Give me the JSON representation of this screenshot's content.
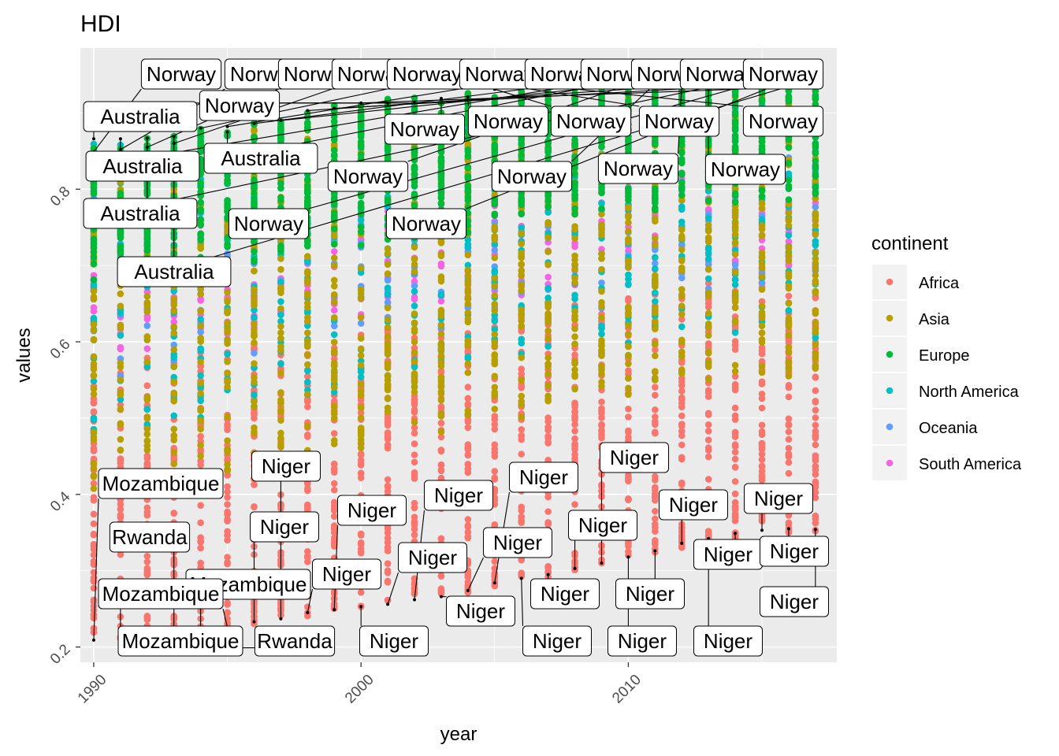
{
  "chart_data": {
    "type": "scatter",
    "title": "HDI",
    "xlabel": "year",
    "ylabel": "values",
    "xlim": [
      1989.5,
      2017.8
    ],
    "ylim": [
      0.18,
      0.985
    ],
    "x_ticks": [
      1990,
      2000,
      2010
    ],
    "x_tick_labels": [
      "1990",
      "2000",
      "2010"
    ],
    "y_ticks": [
      0.2,
      0.4,
      0.6,
      0.8
    ],
    "y_tick_labels": [
      "0.2",
      "0.4",
      "0.6",
      "0.8"
    ],
    "grid": true,
    "legend": {
      "title": "continent",
      "placement": "right",
      "entries": [
        {
          "name": "Africa",
          "color": "#F8766D"
        },
        {
          "name": "Asia",
          "color": "#B79F00"
        },
        {
          "name": "Europe",
          "color": "#00BA38"
        },
        {
          "name": "North America",
          "color": "#00BFC4"
        },
        {
          "name": "Oceania",
          "color": "#619CFF"
        },
        {
          "name": "South America",
          "color": "#F564E3"
        }
      ]
    },
    "years": [
      1990,
      1991,
      1992,
      1993,
      1994,
      1995,
      1996,
      1997,
      1998,
      1999,
      2000,
      2001,
      2002,
      2003,
      2004,
      2005,
      2006,
      2007,
      2008,
      2009,
      2010,
      2011,
      2012,
      2013,
      2014,
      2015,
      2016,
      2017
    ],
    "series": [
      {
        "name": "Africa",
        "range_by_year": [
          [
            0.2,
            0.58
          ],
          [
            0.21,
            0.58
          ],
          [
            0.21,
            0.58
          ],
          [
            0.21,
            0.58
          ],
          [
            0.22,
            0.59
          ],
          [
            0.22,
            0.59
          ],
          [
            0.23,
            0.6
          ],
          [
            0.24,
            0.6
          ],
          [
            0.24,
            0.6
          ],
          [
            0.25,
            0.61
          ],
          [
            0.25,
            0.61
          ],
          [
            0.26,
            0.62
          ],
          [
            0.26,
            0.62
          ],
          [
            0.27,
            0.63
          ],
          [
            0.27,
            0.64
          ],
          [
            0.28,
            0.64
          ],
          [
            0.29,
            0.65
          ],
          [
            0.29,
            0.65
          ],
          [
            0.3,
            0.66
          ],
          [
            0.31,
            0.66
          ],
          [
            0.32,
            0.67
          ],
          [
            0.32,
            0.68
          ],
          [
            0.33,
            0.68
          ],
          [
            0.34,
            0.69
          ],
          [
            0.34,
            0.69
          ],
          [
            0.35,
            0.7
          ],
          [
            0.35,
            0.7
          ],
          [
            0.35,
            0.7
          ]
        ]
      },
      {
        "name": "Asia",
        "range_by_year": [
          [
            0.4,
            0.85
          ],
          [
            0.41,
            0.85
          ],
          [
            0.41,
            0.86
          ],
          [
            0.42,
            0.86
          ],
          [
            0.42,
            0.87
          ],
          [
            0.43,
            0.87
          ],
          [
            0.44,
            0.88
          ],
          [
            0.44,
            0.88
          ],
          [
            0.45,
            0.89
          ],
          [
            0.46,
            0.89
          ],
          [
            0.46,
            0.9
          ],
          [
            0.47,
            0.9
          ],
          [
            0.48,
            0.9
          ],
          [
            0.48,
            0.9
          ],
          [
            0.49,
            0.91
          ],
          [
            0.5,
            0.91
          ],
          [
            0.5,
            0.91
          ],
          [
            0.51,
            0.91
          ],
          [
            0.52,
            0.92
          ],
          [
            0.52,
            0.92
          ],
          [
            0.53,
            0.92
          ],
          [
            0.53,
            0.92
          ],
          [
            0.54,
            0.92
          ],
          [
            0.54,
            0.93
          ],
          [
            0.55,
            0.93
          ],
          [
            0.55,
            0.93
          ],
          [
            0.55,
            0.93
          ],
          [
            0.55,
            0.93
          ]
        ]
      },
      {
        "name": "Europe",
        "range_by_year": [
          [
            0.68,
            0.86
          ],
          [
            0.68,
            0.86
          ],
          [
            0.68,
            0.87
          ],
          [
            0.69,
            0.87
          ],
          [
            0.69,
            0.88
          ],
          [
            0.7,
            0.88
          ],
          [
            0.7,
            0.89
          ],
          [
            0.71,
            0.89
          ],
          [
            0.71,
            0.9
          ],
          [
            0.72,
            0.91
          ],
          [
            0.72,
            0.91
          ],
          [
            0.73,
            0.92
          ],
          [
            0.73,
            0.92
          ],
          [
            0.74,
            0.92
          ],
          [
            0.74,
            0.93
          ],
          [
            0.75,
            0.93
          ],
          [
            0.75,
            0.93
          ],
          [
            0.76,
            0.94
          ],
          [
            0.76,
            0.94
          ],
          [
            0.77,
            0.94
          ],
          [
            0.77,
            0.94
          ],
          [
            0.77,
            0.94
          ],
          [
            0.78,
            0.94
          ],
          [
            0.78,
            0.95
          ],
          [
            0.78,
            0.95
          ],
          [
            0.78,
            0.95
          ],
          [
            0.78,
            0.95
          ],
          [
            0.78,
            0.95
          ]
        ]
      },
      {
        "name": "North America",
        "range_by_year": [
          [
            0.48,
            0.86
          ],
          [
            0.49,
            0.86
          ],
          [
            0.49,
            0.86
          ],
          [
            0.5,
            0.87
          ],
          [
            0.5,
            0.87
          ],
          [
            0.51,
            0.87
          ],
          [
            0.51,
            0.88
          ],
          [
            0.52,
            0.88
          ],
          [
            0.52,
            0.88
          ],
          [
            0.53,
            0.88
          ],
          [
            0.53,
            0.89
          ],
          [
            0.54,
            0.89
          ],
          [
            0.54,
            0.89
          ],
          [
            0.55,
            0.89
          ],
          [
            0.55,
            0.9
          ],
          [
            0.56,
            0.9
          ],
          [
            0.56,
            0.9
          ],
          [
            0.57,
            0.91
          ],
          [
            0.57,
            0.91
          ],
          [
            0.58,
            0.91
          ],
          [
            0.58,
            0.91
          ],
          [
            0.59,
            0.92
          ],
          [
            0.59,
            0.92
          ],
          [
            0.6,
            0.92
          ],
          [
            0.6,
            0.92
          ],
          [
            0.6,
            0.92
          ],
          [
            0.6,
            0.92
          ],
          [
            0.6,
            0.92
          ]
        ]
      },
      {
        "name": "Oceania",
        "range_by_year": [
          [
            0.55,
            0.86
          ],
          [
            0.55,
            0.86
          ],
          [
            0.56,
            0.86
          ],
          [
            0.56,
            0.87
          ],
          [
            0.57,
            0.87
          ],
          [
            0.57,
            0.87
          ],
          [
            0.58,
            0.88
          ],
          [
            0.58,
            0.88
          ],
          [
            0.59,
            0.89
          ],
          [
            0.59,
            0.89
          ],
          [
            0.6,
            0.9
          ],
          [
            0.6,
            0.9
          ],
          [
            0.61,
            0.91
          ],
          [
            0.61,
            0.91
          ],
          [
            0.62,
            0.91
          ],
          [
            0.62,
            0.92
          ],
          [
            0.63,
            0.92
          ],
          [
            0.63,
            0.92
          ],
          [
            0.64,
            0.92
          ],
          [
            0.64,
            0.93
          ],
          [
            0.65,
            0.93
          ],
          [
            0.65,
            0.93
          ],
          [
            0.66,
            0.93
          ],
          [
            0.66,
            0.93
          ],
          [
            0.67,
            0.94
          ],
          [
            0.67,
            0.94
          ],
          [
            0.67,
            0.94
          ],
          [
            0.67,
            0.94
          ]
        ]
      },
      {
        "name": "South America",
        "range_by_year": [
          [
            0.58,
            0.74
          ],
          [
            0.59,
            0.74
          ],
          [
            0.59,
            0.75
          ],
          [
            0.6,
            0.75
          ],
          [
            0.6,
            0.76
          ],
          [
            0.61,
            0.76
          ],
          [
            0.61,
            0.76
          ],
          [
            0.62,
            0.77
          ],
          [
            0.62,
            0.77
          ],
          [
            0.63,
            0.78
          ],
          [
            0.63,
            0.78
          ],
          [
            0.64,
            0.79
          ],
          [
            0.64,
            0.79
          ],
          [
            0.65,
            0.8
          ],
          [
            0.65,
            0.8
          ],
          [
            0.66,
            0.81
          ],
          [
            0.66,
            0.81
          ],
          [
            0.67,
            0.81
          ],
          [
            0.67,
            0.82
          ],
          [
            0.68,
            0.82
          ],
          [
            0.68,
            0.82
          ],
          [
            0.69,
            0.83
          ],
          [
            0.69,
            0.83
          ],
          [
            0.7,
            0.83
          ],
          [
            0.7,
            0.84
          ],
          [
            0.7,
            0.84
          ],
          [
            0.7,
            0.84
          ],
          [
            0.7,
            0.84
          ]
        ]
      }
    ],
    "annotations": [
      {
        "text": "Norway",
        "x": 1990,
        "y": 0.849
      },
      {
        "text": "Norway",
        "x": 1991,
        "y": 0.852
      },
      {
        "text": "Norway",
        "x": 1992,
        "y": 0.855
      },
      {
        "text": "Norway",
        "x": 1993,
        "y": 0.86
      },
      {
        "text": "Norway",
        "x": 1994,
        "y": 0.88
      },
      {
        "text": "Norway",
        "x": 1995,
        "y": 0.882
      },
      {
        "text": "Norway",
        "x": 1996,
        "y": 0.886
      },
      {
        "text": "Norway",
        "x": 1997,
        "y": 0.89
      },
      {
        "text": "Norway",
        "x": 1998,
        "y": 0.903
      },
      {
        "text": "Norway",
        "x": 1999,
        "y": 0.906
      },
      {
        "text": "Norway",
        "x": 2000,
        "y": 0.913
      },
      {
        "text": "Norway",
        "x": 2001,
        "y": 0.913
      },
      {
        "text": "Norway",
        "x": 2002,
        "y": 0.913
      },
      {
        "text": "Norway",
        "x": 2003,
        "y": 0.919
      },
      {
        "text": "Norway",
        "x": 2004,
        "y": 0.921
      },
      {
        "text": "Norway",
        "x": 2005,
        "y": 0.931
      },
      {
        "text": "Norway",
        "x": 2006,
        "y": 0.933
      },
      {
        "text": "Norway",
        "x": 2007,
        "y": 0.935
      },
      {
        "text": "Norway",
        "x": 2008,
        "y": 0.936
      },
      {
        "text": "Norway",
        "x": 2009,
        "y": 0.937
      },
      {
        "text": "Norway",
        "x": 2010,
        "y": 0.937
      },
      {
        "text": "Norway",
        "x": 2011,
        "y": 0.938
      },
      {
        "text": "Norway",
        "x": 2012,
        "y": 0.939
      },
      {
        "text": "Norway",
        "x": 2013,
        "y": 0.939
      },
      {
        "text": "Norway",
        "x": 2014,
        "y": 0.941
      },
      {
        "text": "Norway",
        "x": 2015,
        "y": 0.942
      },
      {
        "text": "Norway",
        "x": 2016,
        "y": 0.943
      },
      {
        "text": "Norway",
        "x": 2017,
        "y": 0.945
      },
      {
        "text": "Australia",
        "x": 1990,
        "y": 0.866
      },
      {
        "text": "Australia",
        "x": 1991,
        "y": 0.866
      },
      {
        "text": "Australia",
        "x": 1992,
        "y": 0.867
      },
      {
        "text": "Australia",
        "x": 1993,
        "y": 0.869
      },
      {
        "text": "Australia",
        "x": 1995,
        "y": 0.875
      },
      {
        "text": "Mozambique",
        "x": 1990,
        "y": 0.209
      },
      {
        "text": "Mozambique",
        "x": 1991,
        "y": 0.213
      },
      {
        "text": "Mozambique",
        "x": 1992,
        "y": 0.214
      },
      {
        "text": "Mozambique",
        "x": 1994,
        "y": 0.222
      },
      {
        "text": "Mozambique",
        "x": 1995,
        "y": 0.226
      },
      {
        "text": "Rwanda",
        "x": 1993,
        "y": 0.206
      },
      {
        "text": "Rwanda",
        "x": 1994,
        "y": 0.199
      },
      {
        "text": "Niger",
        "x": 1996,
        "y": 0.233
      },
      {
        "text": "Niger",
        "x": 1997,
        "y": 0.237
      },
      {
        "text": "Niger",
        "x": 1998,
        "y": 0.245
      },
      {
        "text": "Niger",
        "x": 1999,
        "y": 0.249
      },
      {
        "text": "Niger",
        "x": 2000,
        "y": 0.253
      },
      {
        "text": "Niger",
        "x": 2001,
        "y": 0.256
      },
      {
        "text": "Niger",
        "x": 2002,
        "y": 0.262
      },
      {
        "text": "Niger",
        "x": 2003,
        "y": 0.266
      },
      {
        "text": "Niger",
        "x": 2004,
        "y": 0.274
      },
      {
        "text": "Niger",
        "x": 2005,
        "y": 0.284
      },
      {
        "text": "Niger",
        "x": 2006,
        "y": 0.29
      },
      {
        "text": "Niger",
        "x": 2007,
        "y": 0.295
      },
      {
        "text": "Niger",
        "x": 2008,
        "y": 0.303
      },
      {
        "text": "Niger",
        "x": 2009,
        "y": 0.31
      },
      {
        "text": "Niger",
        "x": 2010,
        "y": 0.318
      },
      {
        "text": "Niger",
        "x": 2011,
        "y": 0.326
      },
      {
        "text": "Niger",
        "x": 2012,
        "y": 0.336
      },
      {
        "text": "Niger",
        "x": 2013,
        "y": 0.342
      },
      {
        "text": "Niger",
        "x": 2014,
        "y": 0.349
      },
      {
        "text": "Niger",
        "x": 2015,
        "y": 0.353
      },
      {
        "text": "Niger",
        "x": 2016,
        "y": 0.355
      },
      {
        "text": "Niger",
        "x": 2017,
        "y": 0.354
      }
    ]
  }
}
